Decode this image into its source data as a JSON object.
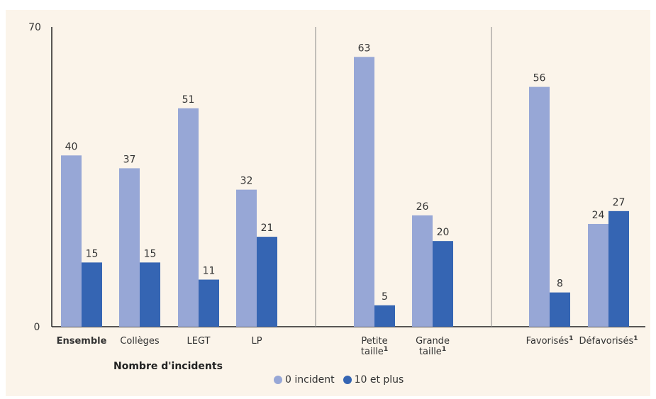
{
  "colors": {
    "series_a": "#97a7d6",
    "series_b": "#3565b3",
    "panel": "#fbf4ea",
    "divider": "#888888",
    "axis": "#222222"
  },
  "chart_data": {
    "type": "bar",
    "title": "",
    "xlabel": "Nombre d'incidents",
    "ylabel": "",
    "ylim": [
      0,
      70
    ],
    "yticks": [
      "0",
      "70"
    ],
    "grid": false,
    "legend_position": "bottom-center",
    "groups": [
      {
        "categories": [
          {
            "label": "Ensemble",
            "sub": "",
            "bold": true
          },
          {
            "label": "Collèges",
            "sub": ""
          },
          {
            "label": "LEGT",
            "sub": ""
          },
          {
            "label": "LP",
            "sub": ""
          }
        ]
      },
      {
        "categories": [
          {
            "label": "Petite",
            "label2": "taille",
            "sub": "1"
          },
          {
            "label": "Grande",
            "label2": "taille",
            "sub": "1"
          }
        ]
      },
      {
        "categories": [
          {
            "label": "Favorisés",
            "sub": "1"
          },
          {
            "label": "Défavorisés",
            "sub": "1"
          }
        ]
      }
    ],
    "series": [
      {
        "name": "0 incident",
        "values": [
          40,
          37,
          51,
          32,
          63,
          26,
          56,
          24
        ]
      },
      {
        "name": "10 et plus",
        "values": [
          15,
          15,
          11,
          21,
          5,
          20,
          8,
          27
        ]
      }
    ]
  }
}
